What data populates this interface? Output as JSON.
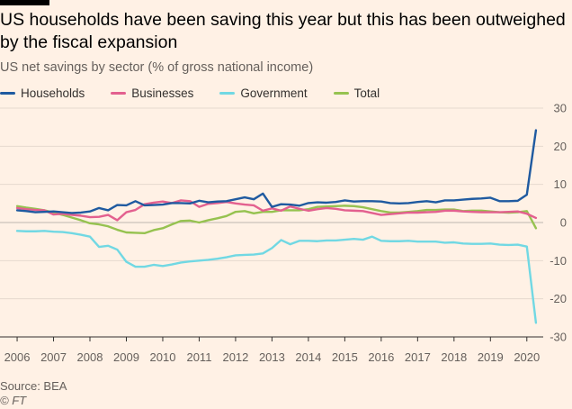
{
  "header": {
    "title": "US households have been saving this year but this has been outweighed by the fiscal expansion",
    "subtitle": "US net savings by sector (% of gross national income)"
  },
  "footer": {
    "source": "Source: BEA",
    "credit": "© FT"
  },
  "chart_data": {
    "type": "line",
    "title": "US households have been saving this year but this has been outweighed by the fiscal expansion",
    "subtitle": "US net savings by sector (% of gross national income)",
    "xlabel": "",
    "ylabel": "",
    "x": [
      2006.0,
      2006.25,
      2006.5,
      2006.75,
      2007.0,
      2007.25,
      2007.5,
      2007.75,
      2008.0,
      2008.25,
      2008.5,
      2008.75,
      2009.0,
      2009.25,
      2009.5,
      2009.75,
      2010.0,
      2010.25,
      2010.5,
      2010.75,
      2011.0,
      2011.25,
      2011.5,
      2011.75,
      2012.0,
      2012.25,
      2012.5,
      2012.75,
      2013.0,
      2013.25,
      2013.5,
      2013.75,
      2014.0,
      2014.25,
      2014.5,
      2014.75,
      2015.0,
      2015.25,
      2015.5,
      2015.75,
      2016.0,
      2016.25,
      2016.5,
      2016.75,
      2017.0,
      2017.25,
      2017.5,
      2017.75,
      2018.0,
      2018.25,
      2018.5,
      2018.75,
      2019.0,
      2019.25,
      2019.5,
      2019.75,
      2020.0,
      2020.25
    ],
    "xlim": [
      2005.9,
      2020.45
    ],
    "x_ticks": [
      2006,
      2007,
      2008,
      2009,
      2010,
      2011,
      2012,
      2013,
      2014,
      2015,
      2016,
      2017,
      2018,
      2019,
      2020
    ],
    "x_tick_labels": [
      "2006",
      "2007",
      "2008",
      "2009",
      "2010",
      "2011",
      "2012",
      "2013",
      "2014",
      "2015",
      "2016",
      "2017",
      "2018",
      "2019",
      "2020"
    ],
    "ylim": [
      -30,
      30
    ],
    "y_ticks": [
      30,
      20,
      10,
      0,
      -10,
      -20,
      -30
    ],
    "y_tick_labels": [
      "30",
      "20",
      "10",
      "0",
      "-10",
      "-20",
      "-30"
    ],
    "grid": true,
    "legend_position": "top",
    "series": [
      {
        "name": "Households",
        "color": "#1f5aa0",
        "values": [
          3.2,
          3.0,
          2.7,
          2.8,
          2.9,
          2.7,
          2.5,
          2.6,
          2.9,
          3.8,
          3.2,
          4.6,
          4.5,
          5.6,
          4.5,
          4.6,
          4.7,
          5.1,
          5.1,
          5.0,
          5.7,
          5.3,
          5.5,
          5.6,
          6.1,
          6.6,
          6.1,
          7.6,
          4.1,
          4.8,
          4.7,
          4.4,
          5.1,
          5.3,
          5.2,
          5.4,
          5.8,
          5.5,
          5.6,
          5.6,
          5.5,
          5.1,
          5.0,
          5.1,
          5.4,
          5.6,
          5.3,
          5.8,
          5.8,
          6.0,
          6.2,
          6.3,
          6.5,
          5.6,
          5.6,
          5.7,
          7.3,
          24.2
        ]
      },
      {
        "name": "Businesses",
        "color": "#e3608f",
        "values": [
          3.8,
          3.5,
          3.3,
          3.2,
          2.1,
          2.3,
          2.0,
          1.8,
          1.4,
          1.5,
          2.0,
          0.6,
          2.7,
          3.3,
          4.8,
          5.2,
          5.5,
          5.1,
          5.8,
          5.6,
          4.1,
          4.9,
          5.1,
          5.4,
          5.0,
          4.7,
          4.5,
          3.1,
          3.7,
          3.1,
          4.2,
          3.6,
          3.1,
          3.5,
          3.8,
          3.6,
          3.2,
          3.1,
          3.0,
          2.5,
          2.0,
          2.2,
          2.4,
          2.6,
          2.6,
          2.7,
          2.8,
          3.1,
          3.1,
          2.9,
          2.8,
          2.7,
          2.7,
          2.7,
          2.8,
          2.9,
          2.3,
          1.2
        ]
      },
      {
        "name": "Government",
        "color": "#71d8e3",
        "values": [
          -2.2,
          -2.3,
          -2.3,
          -2.2,
          -2.4,
          -2.5,
          -2.8,
          -3.2,
          -3.7,
          -6.4,
          -6.1,
          -7.1,
          -10.3,
          -11.6,
          -11.6,
          -11.1,
          -11.4,
          -11.0,
          -10.5,
          -10.2,
          -10.0,
          -9.8,
          -9.5,
          -9.1,
          -8.6,
          -8.5,
          -8.4,
          -8.1,
          -6.7,
          -4.6,
          -5.7,
          -4.8,
          -4.8,
          -4.9,
          -4.7,
          -4.7,
          -4.5,
          -4.3,
          -4.5,
          -3.7,
          -4.8,
          -4.9,
          -4.9,
          -4.8,
          -5.0,
          -5.0,
          -5.0,
          -5.3,
          -5.2,
          -5.5,
          -5.6,
          -5.6,
          -5.5,
          -5.8,
          -5.9,
          -5.8,
          -6.3,
          -26.3
        ]
      },
      {
        "name": "Total",
        "color": "#96c250",
        "values": [
          4.3,
          3.9,
          3.6,
          3.2,
          2.6,
          2.0,
          1.3,
          0.6,
          -0.2,
          -0.5,
          -1.0,
          -1.9,
          -2.6,
          -2.7,
          -2.8,
          -2.0,
          -1.5,
          -0.5,
          0.4,
          0.5,
          0.0,
          0.6,
          1.1,
          1.7,
          2.8,
          3.0,
          2.4,
          2.8,
          2.8,
          3.2,
          3.2,
          3.2,
          3.5,
          4.1,
          4.2,
          4.3,
          4.4,
          4.3,
          4.0,
          3.5,
          3.0,
          2.6,
          2.6,
          2.8,
          3.0,
          3.3,
          3.3,
          3.4,
          3.4,
          3.0,
          3.1,
          3.1,
          2.9,
          2.7,
          2.6,
          2.7,
          3.0,
          -1.5
        ]
      }
    ]
  }
}
